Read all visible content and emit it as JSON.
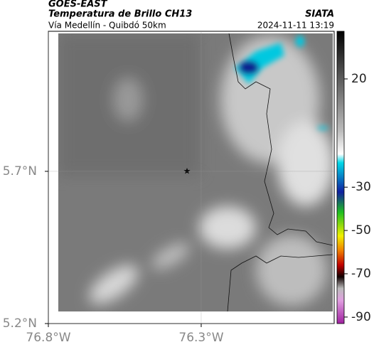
{
  "header": {
    "source": "GOES-EAST",
    "product": "Temperatura de Brillo CH13",
    "agency": "SIATA",
    "region": "Vía Medellín - Quibdó 50km",
    "timestamp": "2024-11-11 13:19"
  },
  "map": {
    "lon_lim": [
      -76.8,
      -75.865
    ],
    "lat_lim": [
      5.2,
      6.16
    ],
    "xticks": [
      {
        "value": -76.8,
        "label": "76.8°W"
      },
      {
        "value": -76.3,
        "label": "76.3°W"
      }
    ],
    "yticks": [
      {
        "value": 5.2,
        "label": "5.2°N"
      },
      {
        "value": 5.7,
        "label": "5.7°N"
      }
    ],
    "grid": true
  },
  "colorbar": {
    "lim": [
      -93,
      42
    ],
    "ticks": [
      20,
      -30,
      -50,
      -70,
      -90
    ]
  }
}
